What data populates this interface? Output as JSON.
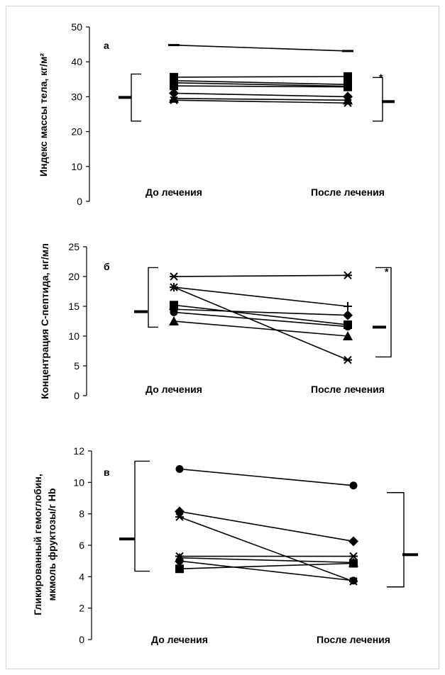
{
  "chart_data": [
    {
      "type": "line",
      "panel_label": "а",
      "ylabel": "Индекс массы тела, кг/м²",
      "categories": [
        "До лечения",
        "После лечения"
      ],
      "yticks": [
        "0",
        "10",
        "20",
        "30",
        "40",
        "50"
      ],
      "ylim": [
        0,
        50
      ],
      "series": [
        {
          "marker": "dash",
          "values": [
            44.8,
            43.1
          ]
        },
        {
          "marker": "square",
          "values": [
            35.6,
            35.8
          ]
        },
        {
          "marker": "square",
          "values": [
            34.6,
            33.5
          ]
        },
        {
          "marker": "square",
          "values": [
            34.0,
            33.0
          ]
        },
        {
          "marker": "square",
          "values": [
            33.1,
            32.8
          ]
        },
        {
          "marker": "diamond",
          "values": [
            31.0,
            30.0
          ]
        },
        {
          "marker": "triangle",
          "values": [
            29.5,
            29.0
          ]
        },
        {
          "marker": "asterisk",
          "values": [
            29.0,
            28.2
          ]
        }
      ],
      "before_range": {
        "min": 23.0,
        "max": 36.5,
        "mean": 29.8
      },
      "after_range": {
        "min": 23.0,
        "max": 35.5,
        "mean": 28.6
      },
      "significance": "*"
    },
    {
      "type": "line",
      "panel_label": "б",
      "ylabel": "Концентрация С-пептида, нг/мл",
      "categories": [
        "До лечения",
        "После лечения"
      ],
      "yticks": [
        "0",
        "5",
        "10",
        "15",
        "20",
        "25"
      ],
      "ylim": [
        0,
        25
      ],
      "series": [
        {
          "marker": "asterisk",
          "values": [
            20.0,
            20.2
          ]
        },
        {
          "marker": "asterisk",
          "values": [
            18.2,
            6.0
          ]
        },
        {
          "marker": "plus",
          "values": [
            18.2,
            15.0
          ]
        },
        {
          "marker": "square",
          "values": [
            15.2,
            11.9
          ]
        },
        {
          "marker": "diamond",
          "values": [
            14.5,
            13.5
          ]
        },
        {
          "marker": "circle",
          "values": [
            14.0,
            11.6
          ]
        },
        {
          "marker": "triangle",
          "values": [
            12.5,
            10.0
          ]
        }
      ],
      "before_range": {
        "min": 11.5,
        "max": 21.5,
        "mean": 14.1
      },
      "after_range": {
        "min": 6.5,
        "max": 21.5,
        "mean": 11.5
      },
      "significance": "*"
    },
    {
      "type": "line",
      "panel_label": "в",
      "ylabel_lines": [
        "Гликированный гемоглобин,",
        "мкмоль фруктозы/г Hb"
      ],
      "categories": [
        "До лечения",
        "После лечения"
      ],
      "yticks": [
        "0",
        "2",
        "4",
        "6",
        "8",
        "10",
        "12"
      ],
      "ylim": [
        0,
        12
      ],
      "series": [
        {
          "marker": "circle",
          "values": [
            10.85,
            9.8
          ]
        },
        {
          "marker": "diamond",
          "values": [
            8.15,
            6.25
          ]
        },
        {
          "marker": "asterisk",
          "values": [
            7.8,
            3.7
          ]
        },
        {
          "marker": "asterisk",
          "values": [
            5.3,
            5.3
          ]
        },
        {
          "marker": "triangle",
          "values": [
            5.2,
            4.9
          ]
        },
        {
          "marker": "circle",
          "values": [
            5.0,
            3.75
          ]
        },
        {
          "marker": "square",
          "values": [
            4.5,
            4.85
          ]
        }
      ],
      "before_range": {
        "min": 4.35,
        "max": 11.35,
        "mean": 6.4
      },
      "after_range": {
        "min": 3.35,
        "max": 9.35,
        "mean": 5.4
      }
    }
  ]
}
